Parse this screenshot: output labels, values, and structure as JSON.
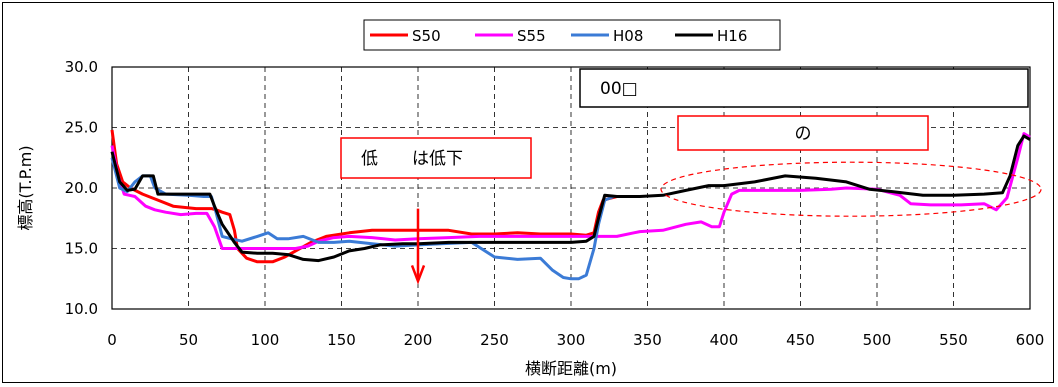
{
  "chart_data": {
    "type": "line",
    "title": "",
    "xlabel": "横断距離(m)",
    "ylabel": "標高(T.P.m)",
    "xlim": [
      0,
      600
    ],
    "ylim": [
      10,
      30
    ],
    "x_ticks": [
      "0",
      "50",
      "100",
      "150",
      "200",
      "250",
      "300",
      "350",
      "400",
      "450",
      "500",
      "550",
      "600"
    ],
    "y_ticks": [
      "10.0",
      "15.0",
      "20.0",
      "25.0",
      "30.0"
    ],
    "grid": true,
    "legend_position": "top-center",
    "series": [
      {
        "name": "S50",
        "color": "#ff0000",
        "points": [
          [
            0,
            24.8
          ],
          [
            3,
            22.0
          ],
          [
            7,
            20.5
          ],
          [
            12,
            20.0
          ],
          [
            20,
            19.5
          ],
          [
            30,
            19.0
          ],
          [
            40,
            18.5
          ],
          [
            55,
            18.3
          ],
          [
            65,
            18.3
          ],
          [
            68,
            18.2
          ],
          [
            72,
            18.0
          ],
          [
            77,
            17.8
          ],
          [
            80,
            16.5
          ],
          [
            82,
            15.0
          ],
          [
            88,
            14.2
          ],
          [
            95,
            13.9
          ],
          [
            105,
            13.9
          ],
          [
            113,
            14.3
          ],
          [
            120,
            14.8
          ],
          [
            130,
            15.5
          ],
          [
            140,
            16.0
          ],
          [
            155,
            16.3
          ],
          [
            170,
            16.5
          ],
          [
            190,
            16.5
          ],
          [
            205,
            16.5
          ],
          [
            220,
            16.5
          ],
          [
            235,
            16.2
          ],
          [
            250,
            16.2
          ],
          [
            265,
            16.3
          ],
          [
            280,
            16.2
          ],
          [
            300,
            16.2
          ],
          [
            310,
            16.1
          ],
          [
            315,
            16.3
          ],
          [
            318,
            18.0
          ],
          [
            321,
            19.0
          ],
          [
            330,
            19.3
          ]
        ]
      },
      {
        "name": "S55",
        "color": "#ff00ff",
        "points": [
          [
            0,
            23.5
          ],
          [
            4,
            21.0
          ],
          [
            8,
            19.5
          ],
          [
            15,
            19.3
          ],
          [
            22,
            18.5
          ],
          [
            28,
            18.2
          ],
          [
            35,
            18.0
          ],
          [
            45,
            17.8
          ],
          [
            55,
            17.9
          ],
          [
            62,
            17.9
          ],
          [
            67,
            16.8
          ],
          [
            72,
            15.0
          ],
          [
            80,
            15.0
          ],
          [
            90,
            15.0
          ],
          [
            100,
            15.0
          ],
          [
            110,
            15.0
          ],
          [
            120,
            15.0
          ],
          [
            128,
            15.2
          ],
          [
            135,
            15.6
          ],
          [
            145,
            15.9
          ],
          [
            155,
            16.0
          ],
          [
            170,
            15.9
          ],
          [
            185,
            15.7
          ],
          [
            200,
            15.8
          ],
          [
            220,
            15.9
          ],
          [
            240,
            16.0
          ],
          [
            260,
            16.0
          ],
          [
            280,
            16.0
          ],
          [
            300,
            16.0
          ],
          [
            315,
            16.0
          ],
          [
            330,
            16.0
          ],
          [
            345,
            16.4
          ],
          [
            360,
            16.5
          ],
          [
            375,
            17.0
          ],
          [
            385,
            17.2
          ],
          [
            392,
            16.8
          ],
          [
            397,
            16.8
          ],
          [
            400,
            18.0
          ],
          [
            405,
            19.5
          ],
          [
            410,
            19.8
          ],
          [
            430,
            19.8
          ],
          [
            450,
            19.8
          ],
          [
            470,
            19.9
          ],
          [
            480,
            20.0
          ],
          [
            500,
            19.9
          ],
          [
            515,
            19.4
          ],
          [
            522,
            18.7
          ],
          [
            535,
            18.6
          ],
          [
            555,
            18.6
          ],
          [
            570,
            18.7
          ],
          [
            578,
            18.2
          ],
          [
            585,
            19.2
          ],
          [
            592,
            22.5
          ],
          [
            596,
            24.5
          ],
          [
            600,
            24.2
          ]
        ]
      },
      {
        "name": "H08",
        "color": "#3b7bd6",
        "points": [
          [
            0,
            22.5
          ],
          [
            5,
            20.0
          ],
          [
            10,
            19.7
          ],
          [
            15,
            20.5
          ],
          [
            20,
            21.0
          ],
          [
            25,
            21.0
          ],
          [
            28,
            20.0
          ],
          [
            35,
            19.5
          ],
          [
            50,
            19.4
          ],
          [
            60,
            19.3
          ],
          [
            65,
            19.3
          ],
          [
            68,
            18.0
          ],
          [
            72,
            16.0
          ],
          [
            78,
            15.8
          ],
          [
            85,
            15.6
          ],
          [
            95,
            16.0
          ],
          [
            102,
            16.3
          ],
          [
            108,
            15.8
          ],
          [
            115,
            15.8
          ],
          [
            125,
            16.0
          ],
          [
            135,
            15.5
          ],
          [
            145,
            15.5
          ],
          [
            155,
            15.6
          ],
          [
            170,
            15.4
          ],
          [
            185,
            15.2
          ],
          [
            200,
            15.3
          ],
          [
            215,
            15.4
          ],
          [
            235,
            15.5
          ],
          [
            250,
            14.3
          ],
          [
            265,
            14.1
          ],
          [
            280,
            14.2
          ],
          [
            288,
            13.2
          ],
          [
            295,
            12.6
          ],
          [
            300,
            12.5
          ],
          [
            305,
            12.5
          ],
          [
            310,
            12.8
          ],
          [
            315,
            15.0
          ],
          [
            318,
            17.0
          ],
          [
            322,
            19.0
          ],
          [
            328,
            19.3
          ]
        ]
      },
      {
        "name": "H16",
        "color": "#000000",
        "points": [
          [
            0,
            23.0
          ],
          [
            5,
            20.5
          ],
          [
            10,
            19.8
          ],
          [
            15,
            19.9
          ],
          [
            20,
            21.0
          ],
          [
            27,
            21.0
          ],
          [
            30,
            19.5
          ],
          [
            45,
            19.5
          ],
          [
            55,
            19.5
          ],
          [
            64,
            19.5
          ],
          [
            67,
            18.5
          ],
          [
            72,
            17.0
          ],
          [
            80,
            15.5
          ],
          [
            85,
            14.7
          ],
          [
            95,
            14.6
          ],
          [
            105,
            14.6
          ],
          [
            115,
            14.5
          ],
          [
            125,
            14.1
          ],
          [
            135,
            14.0
          ],
          [
            145,
            14.3
          ],
          [
            155,
            14.8
          ],
          [
            165,
            15.0
          ],
          [
            175,
            15.3
          ],
          [
            190,
            15.4
          ],
          [
            200,
            15.4
          ],
          [
            220,
            15.5
          ],
          [
            240,
            15.5
          ],
          [
            260,
            15.5
          ],
          [
            280,
            15.5
          ],
          [
            300,
            15.5
          ],
          [
            310,
            15.6
          ],
          [
            315,
            16.0
          ],
          [
            318,
            17.5
          ],
          [
            322,
            19.4
          ],
          [
            330,
            19.3
          ],
          [
            345,
            19.3
          ],
          [
            360,
            19.4
          ],
          [
            375,
            19.8
          ],
          [
            390,
            20.2
          ],
          [
            400,
            20.2
          ],
          [
            420,
            20.5
          ],
          [
            440,
            21.0
          ],
          [
            460,
            20.8
          ],
          [
            480,
            20.5
          ],
          [
            495,
            19.9
          ],
          [
            510,
            19.7
          ],
          [
            530,
            19.4
          ],
          [
            550,
            19.4
          ],
          [
            570,
            19.5
          ],
          [
            582,
            19.6
          ],
          [
            587,
            21.0
          ],
          [
            592,
            23.5
          ],
          [
            596,
            24.3
          ],
          [
            600,
            24.0
          ]
        ]
      }
    ],
    "annotations": [
      {
        "text": "低　　は低下"
      },
      {
        "text": "の"
      },
      {
        "text": "00□"
      }
    ]
  }
}
